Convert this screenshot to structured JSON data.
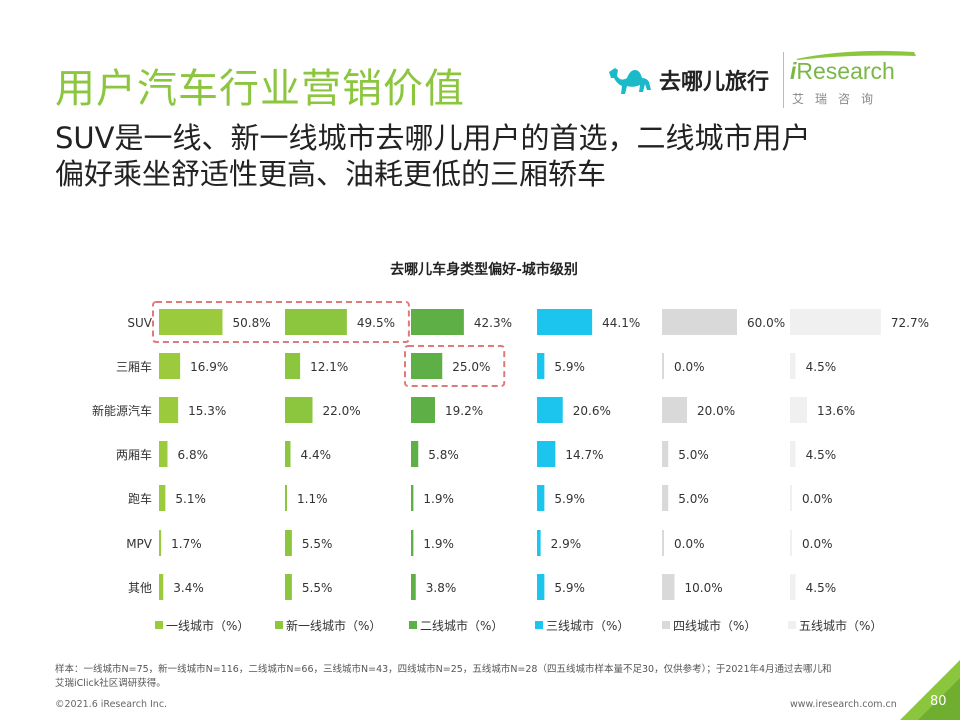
{
  "header": {
    "title": "用户汽车行业营销价值",
    "subtitle_line1": "SUV是一线、新一线城市去哪儿用户的首选，二线城市用户",
    "subtitle_line2": "偏好乘坐舒适性更高、油耗更低的三厢轿车"
  },
  "logos": {
    "qunar_name": "去哪儿旅行",
    "iresearch_i": "i",
    "iresearch_rest": "Research",
    "iresearch_cn": "艾瑞咨询"
  },
  "chart_data": {
    "type": "bar",
    "orientation": "horizontal-small-multiples",
    "title": "去哪儿车身类型偏好-城市级别",
    "categories": [
      "SUV",
      "三厢车",
      "新能源汽车",
      "两厢车",
      "跑车",
      "MPV",
      "其他"
    ],
    "series": [
      {
        "name": "一线城市（%）",
        "color": "#9bcb3c",
        "values": [
          50.8,
          16.9,
          15.3,
          6.8,
          5.1,
          1.7,
          3.4
        ]
      },
      {
        "name": "新一线城市（%）",
        "color": "#8cc63f",
        "values": [
          49.5,
          12.1,
          22.0,
          4.4,
          1.1,
          5.5,
          5.5
        ]
      },
      {
        "name": "二线城市（%）",
        "color": "#5faf47",
        "values": [
          42.3,
          25.0,
          19.2,
          5.8,
          1.9,
          1.9,
          3.8
        ]
      },
      {
        "name": "三线城市（%）",
        "color": "#1cc5ee",
        "values": [
          44.1,
          5.9,
          20.6,
          14.7,
          5.9,
          2.9,
          5.9
        ]
      },
      {
        "name": "四线城市（%）",
        "color": "#d9d9d9",
        "values": [
          60.0,
          0.0,
          20.0,
          5.0,
          5.0,
          0.0,
          10.0
        ]
      },
      {
        "name": "五线城市（%）",
        "color": "#f0f0f0",
        "values": [
          72.7,
          4.5,
          13.6,
          4.5,
          0.0,
          0.0,
          4.5
        ]
      }
    ],
    "value_labels": [
      [
        "50.8%",
        "16.9%",
        "15.3%",
        "6.8%",
        "5.1%",
        "1.7%",
        "3.4%"
      ],
      [
        "49.5%",
        "12.1%",
        "22.0%",
        "4.4%",
        "1.1%",
        "5.5%",
        "5.5%"
      ],
      [
        "42.3%",
        "25.0%",
        "19.2%",
        "5.8%",
        "1.9%",
        "1.9%",
        "3.8%"
      ],
      [
        "44.1%",
        "5.9%",
        "20.6%",
        "14.7%",
        "5.9%",
        "2.9%",
        "5.9%"
      ],
      [
        "60.0%",
        "0.0%",
        "20.0%",
        "5.0%",
        "5.0%",
        "0.0%",
        "10.0%"
      ],
      [
        "72.7%",
        "4.5%",
        "13.6%",
        "4.5%",
        "0.0%",
        "0.0%",
        "4.5%"
      ]
    ],
    "highlights": [
      {
        "series_start": 0,
        "series_end": 1,
        "category": 0
      },
      {
        "series_start": 2,
        "series_end": 2,
        "category": 1
      }
    ],
    "highlight_color": "#e07a7a",
    "legend_position": "bottom"
  },
  "footer": {
    "note_line1": "样本：一线城市N=75，新一线城市N=116，二线城市N=66，三线城市N=43，四线城市N=25，五线城市N=28（四五线城市样本量不足30，仅供参考）；于2021年4月通过去哪儿和",
    "note_line2": "艾瑞iClick社区调研获得。",
    "copyright": "©2021.6 iResearch Inc.",
    "url": "www.iresearch.com.cn",
    "page": "80"
  },
  "colors": {
    "title": "#8cc63f",
    "corner": "#8cc63f"
  }
}
